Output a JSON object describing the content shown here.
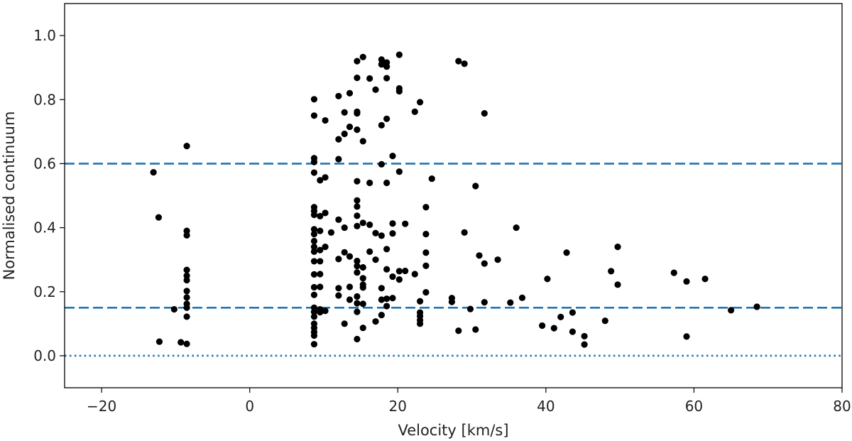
{
  "chart_data": {
    "type": "scatter",
    "title": "",
    "xlabel": "Velocity [km/s]",
    "ylabel": "Normalised continuum",
    "xlim": [
      -25,
      80
    ],
    "ylim": [
      -0.1,
      1.1
    ],
    "xticks": [
      -20,
      0,
      20,
      40,
      60,
      80
    ],
    "xtick_labels": [
      "−20",
      "0",
      "20",
      "40",
      "60",
      "80"
    ],
    "yticks": [
      0.0,
      0.2,
      0.4,
      0.6,
      0.8,
      1.0
    ],
    "ytick_labels": [
      "0.0",
      "0.2",
      "0.4",
      "0.6",
      "0.8",
      "1.0"
    ],
    "grid": false,
    "marker_color": "#000000",
    "reference_lines": [
      {
        "name": "upper-threshold",
        "y": 0.6,
        "style": "dashed",
        "color": "#1f77b4"
      },
      {
        "name": "lower-threshold",
        "y": 0.15,
        "style": "dashed",
        "color": "#1f77b4"
      },
      {
        "name": "zero-level",
        "y": 0.0,
        "style": "dotted",
        "color": "#1f77b4"
      }
    ],
    "points": [
      [
        -13.0,
        0.573
      ],
      [
        -12.3,
        0.432
      ],
      [
        -12.2,
        0.044
      ],
      [
        -10.2,
        0.145
      ],
      [
        -9.3,
        0.042
      ],
      [
        -8.5,
        0.655
      ],
      [
        -8.5,
        0.39
      ],
      [
        -8.5,
        0.376
      ],
      [
        -8.5,
        0.268
      ],
      [
        -8.5,
        0.25
      ],
      [
        -8.5,
        0.236
      ],
      [
        -8.5,
        0.202
      ],
      [
        -8.5,
        0.182
      ],
      [
        -8.5,
        0.162
      ],
      [
        -8.5,
        0.15
      ],
      [
        -8.5,
        0.122
      ],
      [
        -8.5,
        0.037
      ],
      [
        8.7,
        0.801
      ],
      [
        8.7,
        0.75
      ],
      [
        8.7,
        0.617
      ],
      [
        8.7,
        0.605
      ],
      [
        8.7,
        0.572
      ],
      [
        8.7,
        0.464
      ],
      [
        8.7,
        0.452
      ],
      [
        8.7,
        0.44
      ],
      [
        8.7,
        0.395
      ],
      [
        8.7,
        0.38
      ],
      [
        8.7,
        0.358
      ],
      [
        8.7,
        0.34
      ],
      [
        8.7,
        0.325
      ],
      [
        8.7,
        0.295
      ],
      [
        8.7,
        0.254
      ],
      [
        8.7,
        0.214
      ],
      [
        8.7,
        0.19
      ],
      [
        8.7,
        0.15
      ],
      [
        8.7,
        0.137
      ],
      [
        8.7,
        0.122
      ],
      [
        8.7,
        0.1
      ],
      [
        8.7,
        0.087
      ],
      [
        8.7,
        0.074
      ],
      [
        8.7,
        0.063
      ],
      [
        8.7,
        0.036
      ],
      [
        9.5,
        0.548
      ],
      [
        9.5,
        0.436
      ],
      [
        9.5,
        0.39
      ],
      [
        9.5,
        0.33
      ],
      [
        9.5,
        0.295
      ],
      [
        9.5,
        0.255
      ],
      [
        9.5,
        0.215
      ],
      [
        9.5,
        0.145
      ],
      [
        9.5,
        0.136
      ],
      [
        10.2,
        0.735
      ],
      [
        10.2,
        0.557
      ],
      [
        10.2,
        0.446
      ],
      [
        10.2,
        0.34
      ],
      [
        10.2,
        0.14
      ],
      [
        11.0,
        0.385
      ],
      [
        12.0,
        0.811
      ],
      [
        12.0,
        0.676
      ],
      [
        12.0,
        0.614
      ],
      [
        12.0,
        0.425
      ],
      [
        12.0,
        0.302
      ],
      [
        12.0,
        0.211
      ],
      [
        12.0,
        0.188
      ],
      [
        12.8,
        0.76
      ],
      [
        12.8,
        0.693
      ],
      [
        12.8,
        0.4
      ],
      [
        12.8,
        0.323
      ],
      [
        12.8,
        0.1
      ],
      [
        13.5,
        0.82
      ],
      [
        13.5,
        0.715
      ],
      [
        13.5,
        0.31
      ],
      [
        13.5,
        0.215
      ],
      [
        13.5,
        0.175
      ],
      [
        14.5,
        0.92
      ],
      [
        14.5,
        0.868
      ],
      [
        14.5,
        0.762
      ],
      [
        14.5,
        0.757
      ],
      [
        14.5,
        0.706
      ],
      [
        14.5,
        0.545
      ],
      [
        14.5,
        0.485
      ],
      [
        14.5,
        0.466
      ],
      [
        14.5,
        0.437
      ],
      [
        14.5,
        0.405
      ],
      [
        14.5,
        0.296
      ],
      [
        14.5,
        0.28
      ],
      [
        14.5,
        0.26
      ],
      [
        14.5,
        0.185
      ],
      [
        14.5,
        0.164
      ],
      [
        14.5,
        0.137
      ],
      [
        14.5,
        0.052
      ],
      [
        15.3,
        0.933
      ],
      [
        15.3,
        0.67
      ],
      [
        15.3,
        0.415
      ],
      [
        15.3,
        0.276
      ],
      [
        15.3,
        0.242
      ],
      [
        15.3,
        0.222
      ],
      [
        15.3,
        0.213
      ],
      [
        15.3,
        0.162
      ],
      [
        15.3,
        0.087
      ],
      [
        16.2,
        0.866
      ],
      [
        16.2,
        0.54
      ],
      [
        16.2,
        0.409
      ],
      [
        16.2,
        0.325
      ],
      [
        17.0,
        0.831
      ],
      [
        17.0,
        0.383
      ],
      [
        17.0,
        0.3
      ],
      [
        17.0,
        0.107
      ],
      [
        17.8,
        0.925
      ],
      [
        17.8,
        0.91
      ],
      [
        17.8,
        0.72
      ],
      [
        17.8,
        0.598
      ],
      [
        17.8,
        0.375
      ],
      [
        17.8,
        0.211
      ],
      [
        17.8,
        0.175
      ],
      [
        17.8,
        0.127
      ],
      [
        18.5,
        0.916
      ],
      [
        18.5,
        0.903
      ],
      [
        18.5,
        0.867
      ],
      [
        18.5,
        0.74
      ],
      [
        18.5,
        0.54
      ],
      [
        18.5,
        0.333
      ],
      [
        18.5,
        0.27
      ],
      [
        18.5,
        0.178
      ],
      [
        18.5,
        0.155
      ],
      [
        19.3,
        0.624
      ],
      [
        19.3,
        0.413
      ],
      [
        19.3,
        0.382
      ],
      [
        19.3,
        0.247
      ],
      [
        19.3,
        0.18
      ],
      [
        20.2,
        0.94
      ],
      [
        20.2,
        0.835
      ],
      [
        20.2,
        0.826
      ],
      [
        20.2,
        0.575
      ],
      [
        20.2,
        0.264
      ],
      [
        20.2,
        0.238
      ],
      [
        21.0,
        0.412
      ],
      [
        21.0,
        0.265
      ],
      [
        22.3,
        0.762
      ],
      [
        22.3,
        0.255
      ],
      [
        23.0,
        0.792
      ],
      [
        23.0,
        0.17
      ],
      [
        23.0,
        0.135
      ],
      [
        23.0,
        0.124
      ],
      [
        23.0,
        0.111
      ],
      [
        23.0,
        0.1
      ],
      [
        23.8,
        0.464
      ],
      [
        23.8,
        0.38
      ],
      [
        23.8,
        0.322
      ],
      [
        23.8,
        0.281
      ],
      [
        23.8,
        0.198
      ],
      [
        24.6,
        0.553
      ],
      [
        27.3,
        0.18
      ],
      [
        27.3,
        0.168
      ],
      [
        28.2,
        0.92
      ],
      [
        28.2,
        0.078
      ],
      [
        29.0,
        0.912
      ],
      [
        29.0,
        0.385
      ],
      [
        29.8,
        0.146
      ],
      [
        30.5,
        0.53
      ],
      [
        30.5,
        0.082
      ],
      [
        31.0,
        0.313
      ],
      [
        31.7,
        0.757
      ],
      [
        31.7,
        0.288
      ],
      [
        31.7,
        0.167
      ],
      [
        33.5,
        0.3
      ],
      [
        35.2,
        0.166
      ],
      [
        36.0,
        0.4
      ],
      [
        36.8,
        0.181
      ],
      [
        39.5,
        0.094
      ],
      [
        40.2,
        0.24
      ],
      [
        41.1,
        0.086
      ],
      [
        42.0,
        0.121
      ],
      [
        42.8,
        0.322
      ],
      [
        43.6,
        0.135
      ],
      [
        43.6,
        0.075
      ],
      [
        45.2,
        0.061
      ],
      [
        45.2,
        0.035
      ],
      [
        48.0,
        0.109
      ],
      [
        48.8,
        0.264
      ],
      [
        49.7,
        0.34
      ],
      [
        49.7,
        0.222
      ],
      [
        57.3,
        0.259
      ],
      [
        59.0,
        0.232
      ],
      [
        59.0,
        0.06
      ],
      [
        61.5,
        0.24
      ],
      [
        65.0,
        0.142
      ],
      [
        68.5,
        0.153
      ]
    ]
  }
}
